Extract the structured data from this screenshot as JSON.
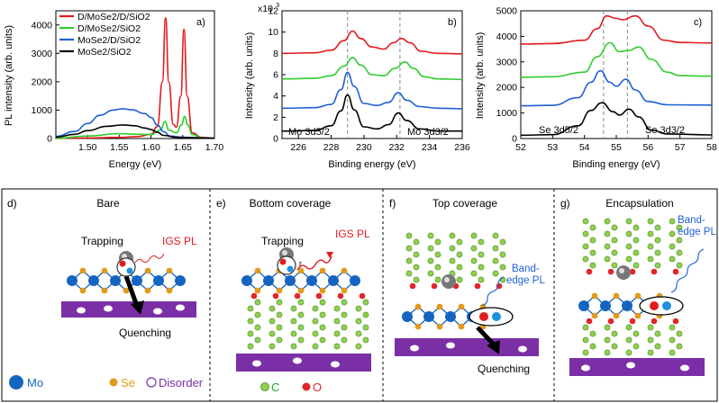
{
  "colors": {
    "red": "#e31a1c",
    "green": "#2ecc2e",
    "blue": "#1f5fd6",
    "black": "#000000",
    "purple": "#7b2fa6",
    "mo": "#1565c0",
    "se": "#e39a1a",
    "c": "#8fd14f",
    "o": "#e0262b",
    "ring": "#555555"
  },
  "chart_data": [
    {
      "id": "a",
      "type": "line",
      "panel_label": "a)",
      "xlabel": "Energy (eV)",
      "ylabel": "PL intensity (arb. units)",
      "xlim": [
        1.45,
        1.7
      ],
      "ylim": [
        0,
        4500
      ],
      "xticks": [
        "1.50",
        "1.55",
        "1.60",
        "1.65",
        "1.70"
      ],
      "xtick_values": [
        1.5,
        1.55,
        1.6,
        1.65,
        1.7
      ],
      "yticks": [
        "0",
        "1000",
        "2000",
        "3000",
        "4000"
      ],
      "ytick_values": [
        0,
        1000,
        2000,
        3000,
        4000
      ],
      "legend": [
        "D/MoSe2/D/SiO2",
        "D/MoSe2/SiO2",
        "MoSe2/D/SiO2",
        "MoSe2/SiO2"
      ],
      "series": [
        {
          "name": "D/MoSe2/D/SiO2",
          "color": "red",
          "points": [
            [
              1.45,
              5
            ],
            [
              1.5,
              20
            ],
            [
              1.55,
              40
            ],
            [
              1.58,
              70
            ],
            [
              1.6,
              150
            ],
            [
              1.61,
              420
            ],
            [
              1.618,
              2000
            ],
            [
              1.623,
              4250
            ],
            [
              1.628,
              2000
            ],
            [
              1.635,
              500
            ],
            [
              1.64,
              400
            ],
            [
              1.647,
              1500
            ],
            [
              1.652,
              3850
            ],
            [
              1.657,
              1500
            ],
            [
              1.665,
              200
            ],
            [
              1.68,
              40
            ],
            [
              1.7,
              15
            ]
          ]
        },
        {
          "name": "D/MoSe2/SiO2",
          "color": "green",
          "points": [
            [
              1.45,
              10
            ],
            [
              1.5,
              90
            ],
            [
              1.55,
              170
            ],
            [
              1.58,
              150
            ],
            [
              1.6,
              140
            ],
            [
              1.615,
              300
            ],
            [
              1.622,
              600
            ],
            [
              1.628,
              300
            ],
            [
              1.64,
              200
            ],
            [
              1.648,
              480
            ],
            [
              1.653,
              780
            ],
            [
              1.658,
              480
            ],
            [
              1.665,
              140
            ],
            [
              1.68,
              30
            ],
            [
              1.7,
              10
            ]
          ]
        },
        {
          "name": "MoSe2/D/SiO2",
          "color": "blue",
          "points": [
            [
              1.45,
              80
            ],
            [
              1.48,
              250
            ],
            [
              1.5,
              530
            ],
            [
              1.52,
              820
            ],
            [
              1.54,
              1000
            ],
            [
              1.555,
              1050
            ],
            [
              1.57,
              1010
            ],
            [
              1.59,
              880
            ],
            [
              1.6,
              740
            ],
            [
              1.61,
              480
            ],
            [
              1.62,
              240
            ],
            [
              1.63,
              90
            ],
            [
              1.65,
              40
            ],
            [
              1.7,
              10
            ]
          ]
        },
        {
          "name": "MoSe2/SiO2",
          "color": "black",
          "points": [
            [
              1.45,
              50
            ],
            [
              1.48,
              150
            ],
            [
              1.5,
              280
            ],
            [
              1.53,
              430
            ],
            [
              1.555,
              480
            ],
            [
              1.575,
              450
            ],
            [
              1.59,
              370
            ],
            [
              1.6,
              320
            ],
            [
              1.61,
              220
            ],
            [
              1.62,
              110
            ],
            [
              1.64,
              40
            ],
            [
              1.7,
              10
            ]
          ]
        }
      ]
    },
    {
      "id": "b",
      "type": "line",
      "panel_label": "b)",
      "xlabel": "Binding energy (eV)",
      "ylabel": "Intensity (arb. units)",
      "y_multiplier": "x10",
      "xlim": [
        225,
        236
      ],
      "ylim": [
        0,
        12
      ],
      "xticks": [
        "226",
        "228",
        "230",
        "232",
        "234",
        "236"
      ],
      "xtick_values": [
        226,
        228,
        230,
        232,
        234,
        236
      ],
      "yticks": [
        "0",
        "2",
        "4",
        "6",
        "8",
        "10",
        "12"
      ],
      "ytick_values": [
        0,
        2,
        4,
        6,
        8,
        10,
        12
      ],
      "dashed_x": [
        229.0,
        232.2
      ],
      "annotations": [
        {
          "text": "Mo 3d5/2",
          "x": 227.0,
          "y": 2.1
        },
        {
          "text": "Mo 3d3/2",
          "x": 233.6,
          "y": 2.1
        }
      ],
      "series": [
        {
          "name": "",
          "color": "red",
          "points": [
            [
              225,
              8.0
            ],
            [
              227,
              8.05
            ],
            [
              228,
              8.3
            ],
            [
              228.8,
              9.2
            ],
            [
              229.3,
              10.1
            ],
            [
              229.8,
              9.4
            ],
            [
              230.5,
              8.6
            ],
            [
              231.2,
              8.4
            ],
            [
              231.8,
              9.0
            ],
            [
              232.3,
              9.4
            ],
            [
              232.8,
              9.0
            ],
            [
              233.5,
              8.2
            ],
            [
              234.5,
              8.0
            ],
            [
              236,
              7.95
            ]
          ]
        },
        {
          "name": "",
          "color": "green",
          "points": [
            [
              225,
              5.6
            ],
            [
              227,
              5.65
            ],
            [
              228,
              5.9
            ],
            [
              228.8,
              6.8
            ],
            [
              229.3,
              7.6
            ],
            [
              229.8,
              6.9
            ],
            [
              230.5,
              6.0
            ],
            [
              231.2,
              5.9
            ],
            [
              231.9,
              6.6
            ],
            [
              232.5,
              7.2
            ],
            [
              233.0,
              6.6
            ],
            [
              233.7,
              5.8
            ],
            [
              234.5,
              5.6
            ],
            [
              236,
              5.55
            ]
          ]
        },
        {
          "name": "",
          "color": "blue",
          "points": [
            [
              225,
              2.85
            ],
            [
              227,
              2.9
            ],
            [
              228,
              3.2
            ],
            [
              228.6,
              4.6
            ],
            [
              229.0,
              6.2
            ],
            [
              229.4,
              4.9
            ],
            [
              230.0,
              3.3
            ],
            [
              230.8,
              3.1
            ],
            [
              231.5,
              3.4
            ],
            [
              232.1,
              4.3
            ],
            [
              232.6,
              3.6
            ],
            [
              233.4,
              3.0
            ],
            [
              234.5,
              2.85
            ],
            [
              236,
              2.8
            ]
          ]
        },
        {
          "name": "",
          "color": "black",
          "points": [
            [
              225,
              0.7
            ],
            [
              227,
              0.75
            ],
            [
              228,
              1.2
            ],
            [
              228.6,
              2.6
            ],
            [
              229.0,
              4.1
            ],
            [
              229.4,
              2.7
            ],
            [
              230.0,
              1.1
            ],
            [
              230.8,
              0.9
            ],
            [
              231.5,
              1.3
            ],
            [
              232.1,
              2.4
            ],
            [
              232.6,
              1.7
            ],
            [
              233.4,
              0.9
            ],
            [
              234.5,
              0.7
            ],
            [
              236,
              0.7
            ]
          ]
        }
      ]
    },
    {
      "id": "c",
      "type": "line",
      "panel_label": "c)",
      "xlabel": "Binding energy (eV)",
      "ylabel": "Intensity (arb. units)",
      "xlim": [
        52,
        58
      ],
      "ylim": [
        0,
        5000
      ],
      "xticks": [
        "52",
        "53",
        "54",
        "55",
        "56",
        "57",
        "58"
      ],
      "xtick_values": [
        52,
        53,
        54,
        55,
        56,
        57,
        58
      ],
      "yticks": [
        "0",
        "1000",
        "2000",
        "3000",
        "4000",
        "5000"
      ],
      "ytick_values": [
        0,
        1000,
        2000,
        3000,
        4000,
        5000
      ],
      "dashed_x": [
        54.6,
        55.35
      ],
      "annotations": [
        {
          "text": "Se 3d5/2",
          "x": 53.6,
          "y": 650
        },
        {
          "text": "Se 3d3/2",
          "x": 56.2,
          "y": 650
        }
      ],
      "series": [
        {
          "name": "",
          "color": "red",
          "points": [
            [
              52,
              3700
            ],
            [
              53,
              3720
            ],
            [
              54,
              3850
            ],
            [
              54.4,
              4300
            ],
            [
              54.7,
              4800
            ],
            [
              55.0,
              4700
            ],
            [
              55.2,
              4650
            ],
            [
              55.6,
              4800
            ],
            [
              56.0,
              4400
            ],
            [
              56.5,
              3850
            ],
            [
              57,
              3760
            ],
            [
              58,
              3740
            ]
          ]
        },
        {
          "name": "",
          "color": "green",
          "points": [
            [
              52,
              2400
            ],
            [
              53,
              2420
            ],
            [
              54,
              2600
            ],
            [
              54.4,
              3200
            ],
            [
              54.8,
              3750
            ],
            [
              55.1,
              3400
            ],
            [
              55.4,
              3450
            ],
            [
              55.7,
              3580
            ],
            [
              56.1,
              3100
            ],
            [
              56.6,
              2600
            ],
            [
              57,
              2460
            ],
            [
              58,
              2440
            ]
          ]
        },
        {
          "name": "",
          "color": "blue",
          "points": [
            [
              52,
              1280
            ],
            [
              53,
              1300
            ],
            [
              53.8,
              1600
            ],
            [
              54.2,
              2200
            ],
            [
              54.5,
              2650
            ],
            [
              54.8,
              2200
            ],
            [
              55.0,
              2050
            ],
            [
              55.3,
              2320
            ],
            [
              55.6,
              1900
            ],
            [
              56.0,
              1450
            ],
            [
              56.6,
              1320
            ],
            [
              58,
              1310
            ]
          ]
        },
        {
          "name": "",
          "color": "black",
          "points": [
            [
              52,
              130
            ],
            [
              53,
              150
            ],
            [
              53.8,
              500
            ],
            [
              54.2,
              1100
            ],
            [
              54.55,
              1400
            ],
            [
              54.9,
              1050
            ],
            [
              55.1,
              920
            ],
            [
              55.4,
              1150
            ],
            [
              55.7,
              850
            ],
            [
              56.1,
              330
            ],
            [
              56.6,
              180
            ],
            [
              58,
              140
            ]
          ]
        }
      ]
    }
  ],
  "schematic": {
    "panels": [
      {
        "label": "d)",
        "title": "Bare"
      },
      {
        "label": "e)",
        "title": "Bottom coverage"
      },
      {
        "label": "f)",
        "title": "Top coverage"
      },
      {
        "label": "g)",
        "title": "Encapsulation"
      }
    ],
    "text": {
      "trapping": "Trapping",
      "igs_pl": "IGS PL",
      "quenching": "Quenching",
      "band_edge_pl_1": "Band-",
      "band_edge_pl_2": "edge PL",
      "band_edge_pl_g1": "Band-",
      "band_edge_pl_g2": "edge PL",
      "trapping_e": "Trapping",
      "igs_pl_e": "IGS PL",
      "quenching_f": "Quenching",
      "r_symbol": "r",
      "exciton_charge": "-",
      "hole_charge": "+"
    },
    "legend": {
      "mo": "Mo",
      "se": "Se",
      "disorder": "Disorder",
      "c": "C",
      "o": "O"
    }
  }
}
